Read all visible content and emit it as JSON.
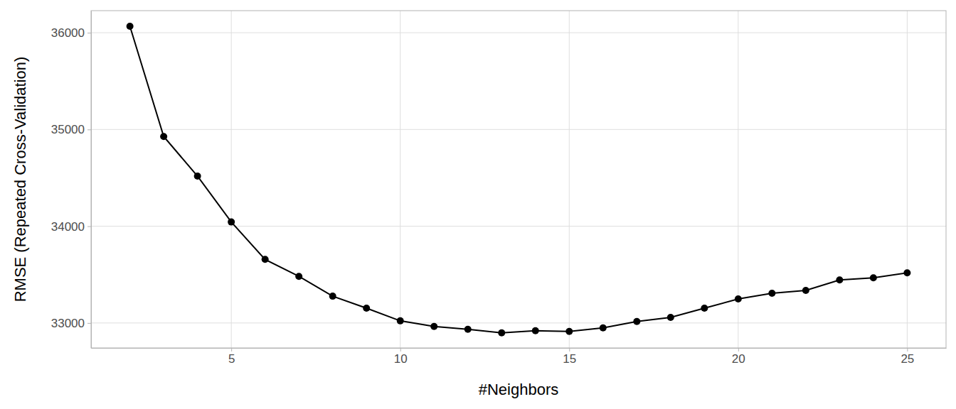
{
  "chart_data": {
    "type": "line",
    "x_label": "#Neighbors",
    "y_label": "RMSE (Repeated Cross-Validation)",
    "x": [
      2,
      3,
      4,
      5,
      6,
      7,
      8,
      9,
      10,
      11,
      12,
      13,
      14,
      15,
      16,
      17,
      18,
      19,
      20,
      21,
      22,
      23,
      24,
      25
    ],
    "values": [
      36066,
      34927,
      34518,
      34044,
      33657,
      33482,
      33277,
      33153,
      33022,
      32964,
      32934,
      32898,
      32920,
      32912,
      32949,
      33015,
      33058,
      33153,
      33248,
      33307,
      33336,
      33445,
      33467,
      33518
    ],
    "xlim": [
      0.85,
      26.15
    ],
    "ylim": [
      32742,
      36228
    ],
    "xticks": [
      5,
      10,
      15,
      20,
      25
    ],
    "yticks": [
      33000,
      34000,
      35000,
      36000
    ],
    "grid": true,
    "marker": "circle",
    "color": "#000000"
  }
}
